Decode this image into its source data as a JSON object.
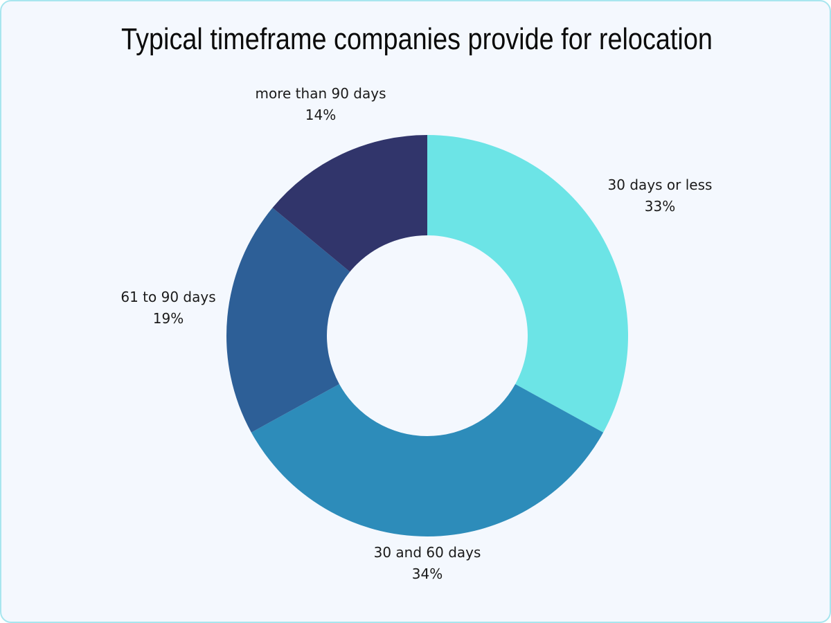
{
  "chart_data": {
    "type": "pie",
    "variant": "donut",
    "title": "Typical timeframe companies provide for relocation",
    "categories": [
      "30 days or less",
      "30 and 60 days",
      "61 to 90 days",
      "more than 90 days"
    ],
    "values": [
      33,
      34,
      19,
      14
    ],
    "unit": "%",
    "colors": [
      "#6ce4e6",
      "#2d8cba",
      "#2d5f97",
      "#31356b"
    ],
    "start_angle": "12 o'clock",
    "direction": "clockwise",
    "legend": "none (direct labels)"
  },
  "labels": [
    {
      "name": "30 days or less",
      "pct": "33%"
    },
    {
      "name": "30 and 60 days",
      "pct": "34%"
    },
    {
      "name": "61 to 90 days",
      "pct": "19%"
    },
    {
      "name": "more than 90 days",
      "pct": "14%"
    }
  ]
}
